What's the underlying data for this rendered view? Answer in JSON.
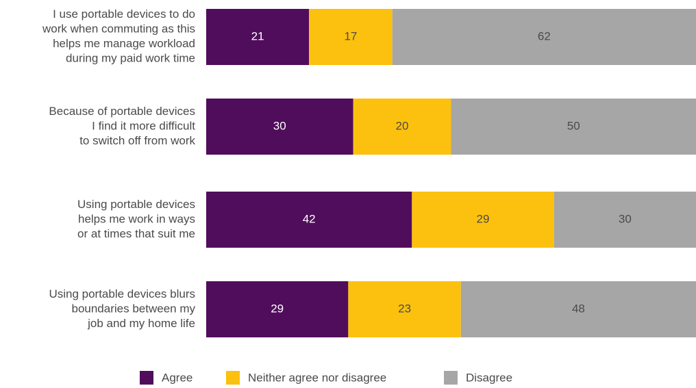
{
  "chart_data": {
    "type": "bar",
    "orientation": "horizontal",
    "stacked": true,
    "title": "",
    "xlabel": "",
    "ylabel": "",
    "xlim": [
      0,
      100
    ],
    "grid": false,
    "legend_position": "bottom",
    "categories": [
      [
        "I use portable devices to do",
        "work when commuting as this",
        "helps me manage workload",
        "during my paid work time"
      ],
      [
        "Because of portable devices",
        "I find it more difficult",
        "to switch off from work"
      ],
      [
        "Using portable devices",
        "helps me work in ways",
        "or at times that suit me"
      ],
      [
        "Using portable devices blurs",
        "boundaries between my",
        "job and my home life"
      ]
    ],
    "series": [
      {
        "name": "Agree",
        "color": "#500d5b",
        "label_color": "#ffffff",
        "values": [
          21,
          30,
          42,
          29
        ]
      },
      {
        "name": "Neither agree nor disagree",
        "color": "#fcc10e",
        "label_color": "#4a4a4a",
        "values": [
          17,
          20,
          29,
          23
        ]
      },
      {
        "name": "Disagree",
        "color": "#a6a6a6",
        "label_color": "#4a4a4a",
        "values": [
          62,
          50,
          30,
          48
        ]
      }
    ]
  }
}
